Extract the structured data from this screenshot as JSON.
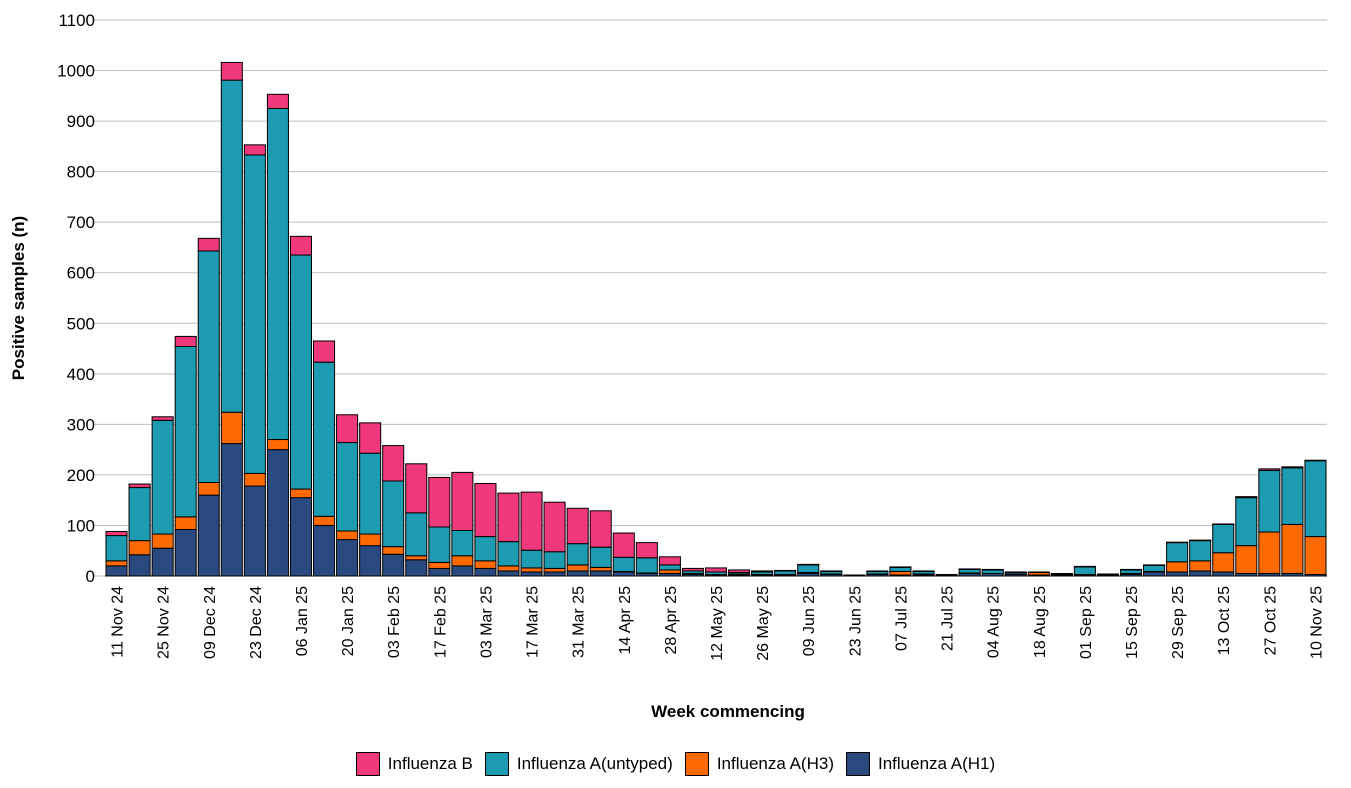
{
  "chart_data": {
    "type": "bar",
    "stacked": true,
    "xlabel": "Week commencing",
    "ylabel": "Positive samples (n)",
    "ylim": [
      0,
      1100
    ],
    "yticks": [
      0,
      100,
      200,
      300,
      400,
      500,
      600,
      700,
      800,
      900,
      1000,
      1100
    ],
    "grid": true,
    "legend_position": "bottom",
    "categories": [
      "11 Nov 24",
      "18 Nov 24",
      "25 Nov 24",
      "02 Dec 24",
      "09 Dec 24",
      "16 Dec 24",
      "23 Dec 24",
      "30 Dec 24",
      "06 Jan 25",
      "13 Jan 25",
      "20 Jan 25",
      "27 Jan 25",
      "03 Feb 25",
      "10 Feb 25",
      "17 Feb 25",
      "24 Feb 25",
      "03 Mar 25",
      "10 Mar 25",
      "17 Mar 25",
      "24 Mar 25",
      "31 Mar 25",
      "07 Apr 25",
      "14 Apr 25",
      "21 Apr 25",
      "28 Apr 25",
      "05 May 25",
      "12 May 25",
      "19 May 25",
      "26 May 25",
      "02 Jun 25",
      "09 Jun 25",
      "16 Jun 25",
      "23 Jun 25",
      "30 Jun 25",
      "07 Jul 25",
      "14 Jul 25",
      "21 Jul 25",
      "28 Jul 25",
      "04 Aug 25",
      "11 Aug 25",
      "18 Aug 25",
      "25 Aug 25",
      "01 Sep 25",
      "08 Sep 25",
      "15 Sep 25",
      "22 Sep 25",
      "29 Sep 25",
      "06 Oct 25",
      "13 Oct 25",
      "20 Oct 25",
      "27 Oct 25",
      "03 Nov 25",
      "10 Nov 25"
    ],
    "tick_labels": [
      "11 Nov 24",
      "25 Nov 24",
      "09 Dec 24",
      "23 Dec 24",
      "06 Jan 25",
      "20 Jan 25",
      "03 Feb 25",
      "17 Feb 25",
      "03 Mar 25",
      "17 Mar 25",
      "31 Mar 25",
      "14 Apr 25",
      "28 Apr 25",
      "12 May 25",
      "26 May 25",
      "09 Jun 25",
      "23 Jun 25",
      "07 Jul 25",
      "21 Jul 25",
      "04 Aug 25",
      "18 Aug 25",
      "01 Sep 25",
      "15 Sep 25",
      "29 Sep 25",
      "13 Oct 25",
      "27 Oct 25",
      "10 Nov 25"
    ],
    "series": [
      {
        "name": "Influenza A(H1)",
        "color": "#2a4a7f",
        "values": [
          20,
          42,
          55,
          92,
          160,
          262,
          178,
          250,
          155,
          100,
          72,
          60,
          43,
          32,
          15,
          20,
          15,
          10,
          8,
          8,
          10,
          10,
          8,
          5,
          5,
          3,
          2,
          2,
          2,
          2,
          5,
          3,
          1,
          3,
          2,
          2,
          1,
          5,
          5,
          3,
          2,
          2,
          2,
          1,
          3,
          8,
          8,
          10,
          8,
          5,
          5,
          5,
          3
        ]
      },
      {
        "name": "Influenza A(H3)",
        "color": "#ff6a00",
        "values": [
          10,
          28,
          28,
          25,
          25,
          62,
          25,
          20,
          17,
          18,
          17,
          23,
          15,
          8,
          12,
          20,
          15,
          10,
          8,
          7,
          12,
          7,
          1,
          1,
          7,
          2,
          1,
          2,
          1,
          1,
          2,
          1,
          0,
          1,
          7,
          2,
          1,
          1,
          0,
          1,
          5,
          1,
          1,
          1,
          2,
          1,
          20,
          20,
          38,
          55,
          82,
          97,
          75
        ]
      },
      {
        "name": "Influenza A(untyped)",
        "color": "#1d9bb0",
        "values": [
          50,
          105,
          225,
          337,
          458,
          657,
          630,
          655,
          463,
          305,
          175,
          160,
          130,
          85,
          70,
          50,
          48,
          48,
          35,
          33,
          42,
          40,
          28,
          30,
          10,
          5,
          5,
          3,
          5,
          7,
          15,
          5,
          1,
          5,
          8,
          5,
          1,
          7,
          7,
          3,
          1,
          1,
          15,
          1,
          7,
          12,
          38,
          40,
          56,
          95,
          122,
          112,
          150
        ]
      },
      {
        "name": "Influenza B",
        "color": "#f0397c",
        "values": [
          8,
          7,
          7,
          20,
          25,
          35,
          20,
          28,
          37,
          42,
          55,
          60,
          70,
          97,
          98,
          115,
          105,
          96,
          115,
          98,
          70,
          72,
          48,
          30,
          16,
          5,
          8,
          5,
          2,
          1,
          1,
          1,
          0,
          1,
          1,
          1,
          0,
          1,
          1,
          1,
          0,
          1,
          1,
          1,
          1,
          1,
          1,
          1,
          1,
          2,
          3,
          2,
          1
        ]
      }
    ]
  }
}
